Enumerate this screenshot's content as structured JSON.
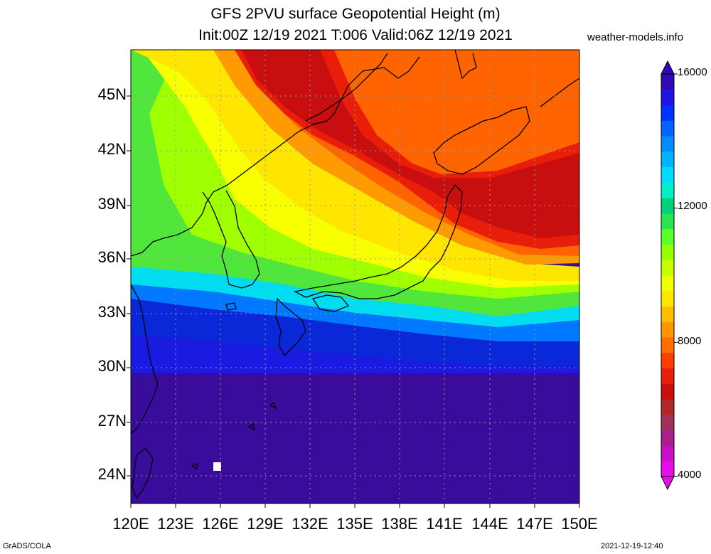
{
  "title": {
    "line1": "GFS 2PVU surface Geopotential Height (m)",
    "line2": "Init:00Z 12/19 2021 T:006 Valid:06Z 12/19 2021"
  },
  "site": "weather-models.info",
  "footer": {
    "left": "GrADS/COLA",
    "right": "2021-12-19-12:40"
  },
  "map": {
    "lon_range": [
      120,
      150
    ],
    "lat_range": [
      22.5,
      47.5
    ],
    "lat_ticks": [
      "45N",
      "42N",
      "39N",
      "36N",
      "33N",
      "30N",
      "27N",
      "24N"
    ],
    "lon_ticks": [
      "120E",
      "123E",
      "126E",
      "129E",
      "132E",
      "135E",
      "138E",
      "141E",
      "144E",
      "147E",
      "150E"
    ],
    "gridlines": true
  },
  "colorbar": {
    "min": 4000,
    "max": 16000,
    "step": 500,
    "labels": [
      "16000",
      "12000",
      "8000",
      "4000"
    ],
    "colors": [
      "#e80ce8",
      "#c810c8",
      "#a8208c",
      "#a0325a",
      "#b02828",
      "#c80e0e",
      "#e61e0a",
      "#ff3c00",
      "#ff6e00",
      "#ff9600",
      "#ffbe00",
      "#ffe600",
      "#f0ff00",
      "#c8ff00",
      "#96ff00",
      "#5aff28",
      "#28e650",
      "#00d278",
      "#00f0c8",
      "#00dcff",
      "#00b4ff",
      "#008cff",
      "#0064ff",
      "#0032ff",
      "#1e14e6",
      "#2d0ab4"
    ]
  }
}
